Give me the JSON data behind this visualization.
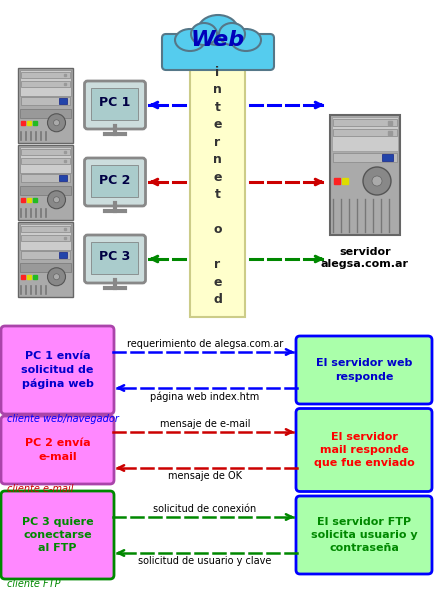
{
  "bg_color": "#ffffff",
  "cloud_color": "#55ccee",
  "cloud_edge_color": "#557788",
  "cloud_text": "Web",
  "internet_bar_color": "#ffffcc",
  "internet_bar_border": "#cccc88",
  "internet_text_lines": [
    "i",
    "n",
    "t",
    "e",
    "r",
    "n",
    "e",
    "t",
    "",
    "o",
    "",
    "r",
    "e",
    "d"
  ],
  "server_label": "servidor\nalegsa.com.ar",
  "pc_labels": [
    "PC 1",
    "PC 2",
    "PC 3"
  ],
  "arrow_colors": [
    "#0000ff",
    "#cc0000",
    "#008800"
  ],
  "left_boxes": [
    {
      "text": "PC 1 envía\nsolicitud de\npágina web",
      "color": "#ff88ff",
      "border": "#aa44aa",
      "text_color": "#0000cc"
    },
    {
      "text": "PC 2 envía\ne-mail",
      "color": "#ff88ff",
      "border": "#aa44aa",
      "text_color": "#ff0000"
    },
    {
      "text": "PC 3 quiere\nconectarse\nal FTP",
      "color": "#ff88ff",
      "border": "#008800",
      "text_color": "#008800"
    }
  ],
  "left_labels": [
    "cliente web/navegador",
    "cliente e-mail",
    "cliente FTP"
  ],
  "left_label_colors": [
    "#0000ff",
    "#cc0000",
    "#008800"
  ],
  "right_boxes": [
    {
      "text": "El servidor web\nresponde",
      "color": "#aaffaa",
      "border": "#0000ff",
      "text_color": "#0000cc"
    },
    {
      "text": "El servidor\nmail responde\nque fue enviado",
      "color": "#aaffaa",
      "border": "#0000ff",
      "text_color": "#ff0000"
    },
    {
      "text": "El servidor FTP\nsolicita usuario y\ncontraseña",
      "color": "#aaffaa",
      "border": "#0000ff",
      "text_color": "#008800"
    }
  ],
  "arrow_labels_top": [
    "requerimiento de alegsa.com.ar",
    "mensaje de e-mail",
    "solicitud de conexión"
  ],
  "arrow_labels_bottom": [
    "página web index.htm",
    "mensaje de OK",
    "solicitud de usuario y clave"
  ]
}
